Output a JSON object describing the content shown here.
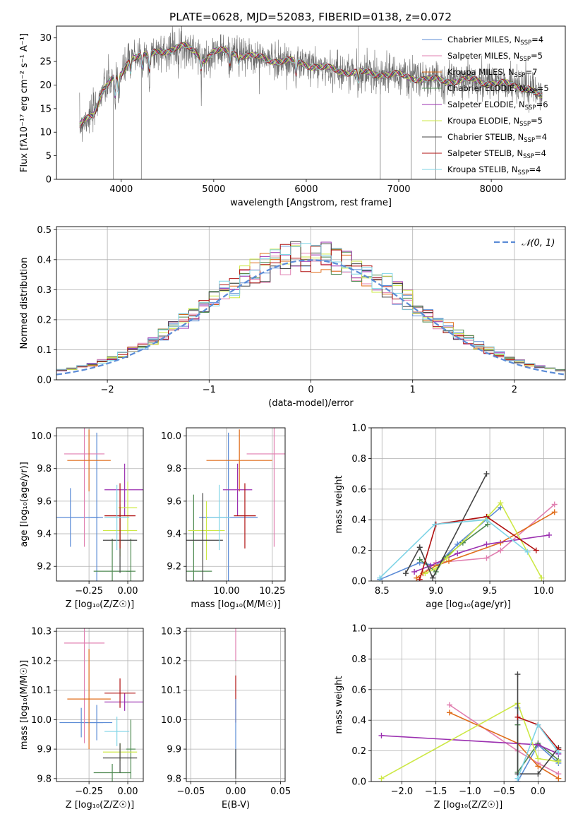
{
  "title": "PLATE=0628, MJD=52083, FIBERID=0138, z=0.072",
  "colors": {
    "c1": "#5b8bd6",
    "c2": "#e07fb0",
    "c3": "#e06d1a",
    "c4": "#4f8a52",
    "c5": "#9b30b0",
    "c6": "#cde845",
    "c7": "#444444",
    "c8": "#b01010",
    "c9": "#7fd4e6"
  },
  "legend": [
    {
      "label": "Chabrier MILES, N",
      "sub": "SSP",
      "value": "=4",
      "color": "#5b8bd6"
    },
    {
      "label": "Salpeter MILES, N",
      "sub": "SSP",
      "value": "=5",
      "color": "#e07fb0"
    },
    {
      "label": "Kroupa MILES, N",
      "sub": "SSP",
      "value": "=7",
      "color": "#e06d1a"
    },
    {
      "label": "Chabrier ELODIE, N",
      "sub": "SSP",
      "value": "=5",
      "color": "#4f8a52"
    },
    {
      "label": "Salpeter ELODIE, N",
      "sub": "SSP",
      "value": "=6",
      "color": "#9b30b0"
    },
    {
      "label": "Kroupa ELODIE, N",
      "sub": "SSP",
      "value": "=5",
      "color": "#cde845"
    },
    {
      "label": "Chabrier STELIB, N",
      "sub": "SSP",
      "value": "=4",
      "color": "#444444"
    },
    {
      "label": "Salpeter STELIB, N",
      "sub": "SSP",
      "value": "=4",
      "color": "#b01010"
    },
    {
      "label": "Kroupa STELIB, N",
      "sub": "SSP",
      "value": "=4",
      "color": "#7fd4e6"
    }
  ],
  "chart_data": [
    {
      "type": "line",
      "panel": "spectrum",
      "xlabel": "wavelength [Angstrom, rest frame]",
      "ylabel": "Flux [fλ10⁻¹⁷ erg cm⁻² s⁻¹ A⁻¹]",
      "xlim": [
        3300,
        8800
      ],
      "ylim": [
        0,
        32.5
      ],
      "xticks": [
        "4000",
        "5000",
        "6000",
        "7000",
        "8000"
      ],
      "yticks": [
        "0",
        "5",
        "10",
        "15",
        "20",
        "25",
        "30"
      ],
      "continuum": {
        "x": [
          3550,
          3600,
          3700,
          3800,
          3900,
          4000,
          4100,
          4200,
          4300,
          4400,
          4500,
          4600,
          4700,
          4800,
          4900,
          5000,
          5200,
          5400,
          5600,
          5800,
          6000,
          6200,
          6400,
          6600,
          6800,
          7000,
          7200,
          7400,
          7600,
          7800,
          8000,
          8200,
          8400,
          8550
        ],
        "y": [
          11,
          12.5,
          14,
          19,
          21,
          22,
          26,
          26.5,
          26,
          27,
          27.5,
          28,
          28,
          27,
          25.5,
          27,
          27,
          26,
          25.5,
          25,
          24.5,
          23.5,
          23,
          22.5,
          22.5,
          22,
          21.5,
          21,
          21,
          21,
          20.5,
          20,
          19.5,
          17
        ]
      }
    },
    {
      "type": "histogram",
      "panel": "residuals",
      "xlabel": "(data-model)/error",
      "ylabel": "Normed distribution",
      "xlim": [
        -2.5,
        2.5
      ],
      "ylim": [
        0,
        0.51
      ],
      "xticks": [
        "−2",
        "−1",
        "0",
        "1",
        "2"
      ],
      "yticks": [
        "0.0",
        "0.1",
        "0.2",
        "0.3",
        "0.4",
        "0.5"
      ],
      "reference": {
        "label": "𝒩(0, 1)",
        "mu": 0,
        "sigma": 1
      }
    },
    {
      "type": "scatter",
      "panel": "age-vs-Z",
      "xlabel": "Z [log₁₀(Z/Z☉)]",
      "ylabel": "age  [log₁₀(age/yr)]",
      "xlim": [
        -0.46,
        0.1
      ],
      "ylim": [
        9.11,
        10.05
      ],
      "xticks": [
        "−0.25",
        "0.00"
      ],
      "yticks": [
        "9.2",
        "9.4",
        "9.6",
        "9.8",
        "10.0"
      ],
      "points": [
        {
          "x": -0.37,
          "y": 9.5,
          "xerr": 0.18,
          "yerr": 0.18,
          "color": "#5b8bd6"
        },
        {
          "x": -0.2,
          "y": 9.5,
          "xerr": 0.04,
          "yerr": 0.52,
          "color": "#5b8bd6"
        },
        {
          "x": -0.28,
          "y": 9.89,
          "xerr": 0.13,
          "yerr": 0.57,
          "color": "#e07fb0"
        },
        {
          "x": -0.25,
          "y": 9.85,
          "xerr": 0.14,
          "yerr": 0.19,
          "color": "#e06d1a"
        },
        {
          "x": -0.1,
          "y": 9.17,
          "xerr": 0.12,
          "yerr": 0.2,
          "color": "#4f8a52"
        },
        {
          "x": 0.02,
          "y": 9.17,
          "xerr": 0.03,
          "yerr": 0.2,
          "color": "#4f8a52"
        },
        {
          "x": -0.02,
          "y": 9.67,
          "xerr": 0.13,
          "yerr": 0.16,
          "color": "#9b30b0"
        },
        {
          "x": -0.05,
          "y": 9.42,
          "xerr": 0.11,
          "yerr": 0.16,
          "color": "#cde845"
        },
        {
          "x": 0.0,
          "y": 9.56,
          "xerr": 0.06,
          "yerr": 0.16,
          "color": "#cde845"
        },
        {
          "x": -0.05,
          "y": 9.36,
          "xerr": 0.11,
          "yerr": 0.2,
          "color": "#444444"
        },
        {
          "x": -0.05,
          "y": 9.51,
          "xerr": 0.1,
          "yerr": 0.2,
          "color": "#b01010"
        },
        {
          "x": -0.07,
          "y": 9.5,
          "xerr": 0.08,
          "yerr": 0.2,
          "color": "#7fd4e6"
        }
      ]
    },
    {
      "type": "scatter",
      "panel": "age-vs-mass",
      "xlabel": "mass [log₁₀(M/M☉)]",
      "ylabel": "",
      "xlim": [
        9.78,
        10.32
      ],
      "ylim": [
        9.11,
        10.05
      ],
      "xticks": [
        "10.00",
        "10.25"
      ],
      "yticks": [
        "9.2",
        "9.4",
        "9.6",
        "9.8",
        "10.0"
      ],
      "points": [
        {
          "x": 10.01,
          "y": 9.5,
          "xerr": 0.16,
          "yerr": 0.52,
          "color": "#5b8bd6"
        },
        {
          "x": 10.26,
          "y": 9.89,
          "xerr": 0.15,
          "yerr": 0.57,
          "color": "#e07fb0"
        },
        {
          "x": 10.07,
          "y": 9.85,
          "xerr": 0.18,
          "yerr": 0.19,
          "color": "#e06d1a"
        },
        {
          "x": 9.82,
          "y": 9.17,
          "xerr": 0.1,
          "yerr": 0.47,
          "color": "#4f8a52"
        },
        {
          "x": 10.06,
          "y": 9.67,
          "xerr": 0.08,
          "yerr": 0.16,
          "color": "#9b30b0"
        },
        {
          "x": 9.89,
          "y": 9.42,
          "xerr": 0.1,
          "yerr": 0.18,
          "color": "#cde845"
        },
        {
          "x": 9.87,
          "y": 9.36,
          "xerr": 0.11,
          "yerr": 0.29,
          "color": "#444444"
        },
        {
          "x": 10.1,
          "y": 9.51,
          "xerr": 0.06,
          "yerr": 0.2,
          "color": "#b01010"
        },
        {
          "x": 9.96,
          "y": 9.5,
          "xerr": 0.06,
          "yerr": 0.2,
          "color": "#7fd4e6"
        }
      ]
    },
    {
      "type": "line",
      "panel": "weight-vs-age",
      "xlabel": "age  [log₁₀(age/yr)]",
      "ylabel": "mass weight",
      "xlim": [
        8.4,
        10.2
      ],
      "ylim": [
        0,
        1.0
      ],
      "xticks": [
        "8.5",
        "9.0",
        "9.5",
        "10.0"
      ],
      "yticks": [
        "0.0",
        "0.2",
        "0.4",
        "0.6",
        "0.8",
        "1.0"
      ],
      "series": [
        {
          "color": "#5b8bd6",
          "x": [
            8.48,
            8.85,
            9.0,
            9.2,
            9.6
          ],
          "y": [
            0.01,
            0.12,
            0.1,
            0.24,
            0.48
          ]
        },
        {
          "color": "#e07fb0",
          "x": [
            8.88,
            9.0,
            9.47,
            9.6,
            10.1
          ],
          "y": [
            0.05,
            0.12,
            0.15,
            0.2,
            0.5
          ]
        },
        {
          "color": "#e06d1a",
          "x": [
            8.82,
            8.88,
            9.0,
            9.12,
            9.6,
            10.1
          ],
          "y": [
            0.02,
            0.05,
            0.1,
            0.13,
            0.25,
            0.45
          ]
        },
        {
          "color": "#4f8a52",
          "x": [
            8.85,
            9.0,
            9.08,
            9.25,
            9.48
          ],
          "y": [
            0.14,
            0.06,
            0.15,
            0.25,
            0.37
          ]
        },
        {
          "color": "#9b30b0",
          "x": [
            8.8,
            8.95,
            9.2,
            9.47,
            10.05
          ],
          "y": [
            0.06,
            0.1,
            0.18,
            0.24,
            0.3
          ]
        },
        {
          "color": "#cde845",
          "x": [
            8.9,
            9.0,
            9.1,
            9.48,
            9.6,
            9.98
          ],
          "y": [
            0.05,
            0.08,
            0.15,
            0.42,
            0.51,
            0.02
          ]
        },
        {
          "color": "#444444",
          "x": [
            8.72,
            8.85,
            8.97,
            9.47
          ],
          "y": [
            0.05,
            0.22,
            0.02,
            0.7
          ]
        },
        {
          "color": "#b01010",
          "x": [
            8.85,
            9.0,
            9.47,
            9.93
          ],
          "y": [
            0.01,
            0.37,
            0.42,
            0.2
          ]
        },
        {
          "color": "#7fd4e6",
          "x": [
            8.48,
            8.99,
            9.47,
            9.85
          ],
          "y": [
            0.02,
            0.37,
            0.4,
            0.19
          ]
        }
      ]
    },
    {
      "type": "scatter",
      "panel": "mass-vs-Z",
      "xlabel": "Z [log₁₀(Z/Z☉)]",
      "ylabel": "mass [log₁₀(M/M☉)]",
      "xlim": [
        -0.46,
        0.1
      ],
      "ylim": [
        9.79,
        10.31
      ],
      "xticks": [
        "−0.25",
        "0.00"
      ],
      "yticks": [
        "9.8",
        "9.9",
        "10.0",
        "10.1",
        "10.2",
        "10.3"
      ],
      "points": [
        {
          "x": -0.3,
          "y": 9.99,
          "xerr": 0.14,
          "yerr": 0.05,
          "color": "#5b8bd6"
        },
        {
          "x": -0.2,
          "y": 9.99,
          "xerr": 0.1,
          "yerr": 0.06,
          "color": "#5b8bd6"
        },
        {
          "x": -0.28,
          "y": 10.26,
          "xerr": 0.13,
          "yerr": 0.34,
          "color": "#e07fb0"
        },
        {
          "x": -0.25,
          "y": 10.07,
          "xerr": 0.14,
          "yerr": 0.17,
          "color": "#e06d1a"
        },
        {
          "x": -0.1,
          "y": 9.82,
          "xerr": 0.12,
          "yerr": 0.03,
          "color": "#4f8a52"
        },
        {
          "x": 0.02,
          "y": 9.9,
          "xerr": 0.03,
          "yerr": 0.1,
          "color": "#4f8a52"
        },
        {
          "x": -0.02,
          "y": 10.06,
          "xerr": 0.13,
          "yerr": 0.03,
          "color": "#9b30b0"
        },
        {
          "x": -0.05,
          "y": 9.89,
          "xerr": 0.11,
          "yerr": 0.03,
          "color": "#cde845"
        },
        {
          "x": -0.05,
          "y": 9.87,
          "xerr": 0.11,
          "yerr": 0.05,
          "color": "#444444"
        },
        {
          "x": -0.05,
          "y": 10.09,
          "xerr": 0.1,
          "yerr": 0.05,
          "color": "#b01010"
        },
        {
          "x": -0.07,
          "y": 9.96,
          "xerr": 0.08,
          "yerr": 0.05,
          "color": "#7fd4e6"
        }
      ]
    },
    {
      "type": "scatter",
      "panel": "mass-vs-ebv",
      "xlabel": "E(B-V)",
      "ylabel": "",
      "xlim": [
        -0.055,
        0.055
      ],
      "ylim": [
        9.79,
        10.31
      ],
      "xticks": [
        "−0.05",
        "0.00",
        "0.05"
      ],
      "yticks": [
        "9.8",
        "9.9",
        "10.0",
        "10.1",
        "10.2",
        "10.3"
      ],
      "points": [
        {
          "x": 0,
          "y": 10.26,
          "xerr": 0,
          "yerr": 0.06,
          "color": "#e07fb0"
        },
        {
          "x": 0,
          "y": 10.07,
          "xerr": 0,
          "yerr": 0.08,
          "color": "#b01010"
        },
        {
          "x": 0,
          "y": 9.95,
          "xerr": 0,
          "yerr": 0.12,
          "color": "#5b8bd6"
        },
        {
          "x": 0,
          "y": 9.85,
          "xerr": 0,
          "yerr": 0.05,
          "color": "#444444"
        }
      ]
    },
    {
      "type": "line",
      "panel": "weight-vs-Z",
      "xlabel": "Z [log₁₀(Z/Z☉)]",
      "ylabel": "mass weight",
      "xlim": [
        -2.45,
        0.4
      ],
      "ylim": [
        0,
        1.0
      ],
      "xticks": [
        "−2.0",
        "−1.5",
        "−1.0",
        "−0.5",
        "0.0"
      ],
      "yticks": [
        "0.0",
        "0.2",
        "0.4",
        "0.6",
        "0.8",
        "1.0"
      ],
      "series": [
        {
          "color": "#5b8bd6",
          "x": [
            -0.3,
            -0.3,
            0.0,
            0.3
          ],
          "y": [
            0.48,
            0.0,
            0.24,
            0.12
          ]
        },
        {
          "color": "#e07fb0",
          "x": [
            -1.3,
            -0.3,
            0.0,
            0.3
          ],
          "y": [
            0.5,
            0.2,
            0.12,
            0.05
          ]
        },
        {
          "color": "#e06d1a",
          "x": [
            -1.3,
            -0.3,
            0.0,
            0.3
          ],
          "y": [
            0.45,
            0.25,
            0.1,
            0.02
          ]
        },
        {
          "color": "#4f8a52",
          "x": [
            -0.3,
            -0.3,
            0.0,
            0.3
          ],
          "y": [
            0.37,
            0.06,
            0.25,
            0.14
          ]
        },
        {
          "color": "#9b30b0",
          "x": [
            -2.3,
            0.0,
            0.3
          ],
          "y": [
            0.3,
            0.24,
            0.18
          ]
        },
        {
          "color": "#cde845",
          "x": [
            -2.3,
            -0.3,
            0.0,
            0.3
          ],
          "y": [
            0.02,
            0.51,
            0.15,
            0.13
          ]
        },
        {
          "color": "#444444",
          "x": [
            -0.3,
            -0.3,
            0.0,
            0.3
          ],
          "y": [
            0.7,
            0.05,
            0.05,
            0.22
          ]
        },
        {
          "color": "#b01010",
          "x": [
            -0.3,
            0.0,
            0.3
          ],
          "y": [
            0.42,
            0.37,
            0.21
          ]
        },
        {
          "color": "#7fd4e6",
          "x": [
            -0.3,
            0.0,
            0.3
          ],
          "y": [
            0.02,
            0.37,
            0.19
          ]
        }
      ]
    }
  ]
}
